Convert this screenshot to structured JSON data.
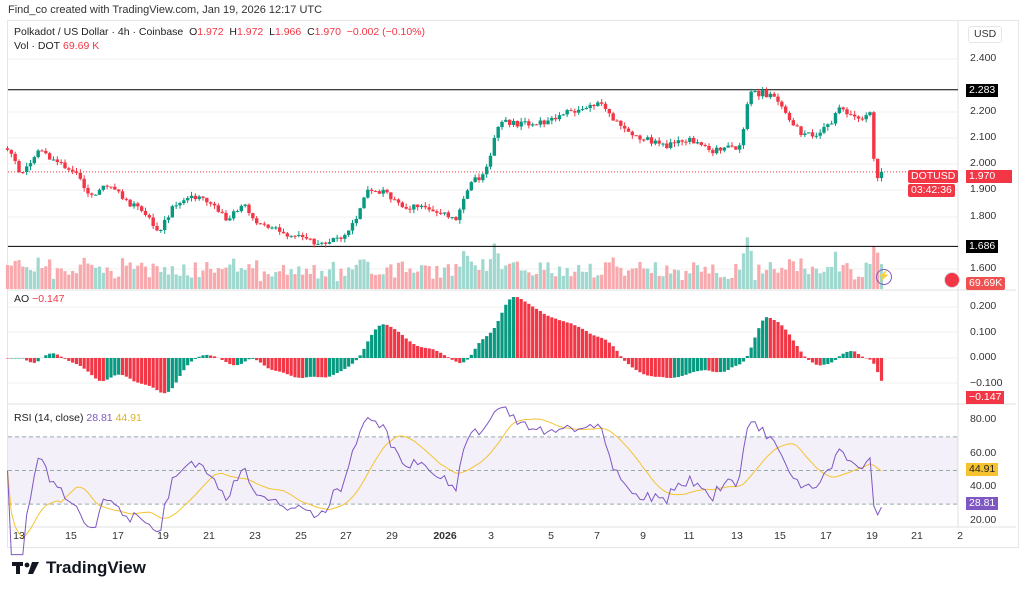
{
  "credit": "Find_co created with TradingView.com, Jan 19, 2026 12:17 UTC",
  "legend": {
    "symbol": "Polkadot / US Dollar · 4h · Coinbase",
    "o_label": "O",
    "o": "1.972",
    "h_label": "H",
    "h": "1.972",
    "l_label": "L",
    "l": "1.966",
    "c_label": "C",
    "c": "1.970",
    "change": "−0.002 (−0.10%)",
    "vol_label": "Vol · DOT",
    "vol": "69.69 K"
  },
  "currency": "USD",
  "price_axis": [
    "2.400",
    "2.200",
    "2.100",
    "2.000",
    "1.900",
    "1.800",
    "1.600"
  ],
  "levels": {
    "resistance": "2.283",
    "support": "1.686"
  },
  "last": {
    "symbol": "DOTUSD",
    "price": "1.970",
    "countdown": "03:42:36",
    "volume": "69.69K"
  },
  "ao": {
    "label": "AO",
    "value": "−0.147",
    "axis": [
      "0.200",
      "0.100",
      "0.000",
      "−0.100"
    ]
  },
  "rsi": {
    "label": "RSI (14, close)",
    "value": "28.81",
    "ma": "44.91",
    "axis": [
      "80.00",
      "60.00",
      "40.00",
      "20.00"
    ]
  },
  "dates": [
    "13",
    "15",
    "17",
    "19",
    "21",
    "23",
    "25",
    "27",
    "29",
    "2026",
    "3",
    "5",
    "7",
    "9",
    "11",
    "13",
    "15",
    "17",
    "19",
    "21",
    "2"
  ],
  "brand": "TradingView",
  "colors": {
    "up": "#089981",
    "down": "#f23645",
    "rsi": "#7e57c2",
    "rsi_ma": "#f5c330"
  },
  "chart_data": {
    "type": "candlestick",
    "title": "Polkadot / US Dollar · 4h · Coinbase",
    "x_unit": "days since Dec 12 2025",
    "keypoints": [
      [
        0.5,
        2.06
      ],
      [
        1.04,
        1.97
      ],
      [
        1.91,
        2.05
      ],
      [
        2.78,
        2.0
      ],
      [
        3.65,
        1.95
      ],
      [
        4.09,
        1.87
      ],
      [
        4.74,
        1.93
      ],
      [
        5.83,
        1.85
      ],
      [
        6.48,
        1.82
      ],
      [
        7.04,
        1.74
      ],
      [
        7.78,
        1.85
      ],
      [
        8.43,
        1.88
      ],
      [
        9.3,
        1.85
      ],
      [
        9.96,
        1.79
      ],
      [
        10.83,
        1.84
      ],
      [
        11.26,
        1.78
      ],
      [
        12.35,
        1.74
      ],
      [
        13.22,
        1.72
      ],
      [
        14.09,
        1.7
      ],
      [
        14.96,
        1.72
      ],
      [
        15.61,
        1.78
      ],
      [
        16.17,
        1.91
      ],
      [
        17.13,
        1.88
      ],
      [
        17.78,
        1.83
      ],
      [
        18.65,
        1.84
      ],
      [
        19.96,
        1.79
      ],
      [
        20.61,
        1.92
      ],
      [
        21.26,
        1.97
      ],
      [
        21.91,
        2.16
      ],
      [
        22.78,
        2.15
      ],
      [
        23.87,
        2.16
      ],
      [
        24.74,
        2.2
      ],
      [
        25.39,
        2.2
      ],
      [
        26.26,
        2.23
      ],
      [
        27.13,
        2.15
      ],
      [
        28.0,
        2.1
      ],
      [
        29.09,
        2.07
      ],
      [
        30.17,
        2.09
      ],
      [
        31.04,
        2.05
      ],
      [
        32.35,
        2.07
      ],
      [
        32.78,
        2.27
      ],
      [
        33.43,
        2.27
      ],
      [
        34.09,
        2.23
      ],
      [
        34.96,
        2.12
      ],
      [
        35.61,
        2.1
      ],
      [
        36.26,
        2.15
      ],
      [
        36.7,
        2.21
      ],
      [
        37.57,
        2.17
      ],
      [
        38.0,
        2.2
      ],
      [
        38.22,
        1.95
      ],
      [
        38.52,
        1.97
      ]
    ],
    "ylim": [
      1.55,
      2.45
    ],
    "hlines": [
      2.283,
      1.686
    ]
  }
}
